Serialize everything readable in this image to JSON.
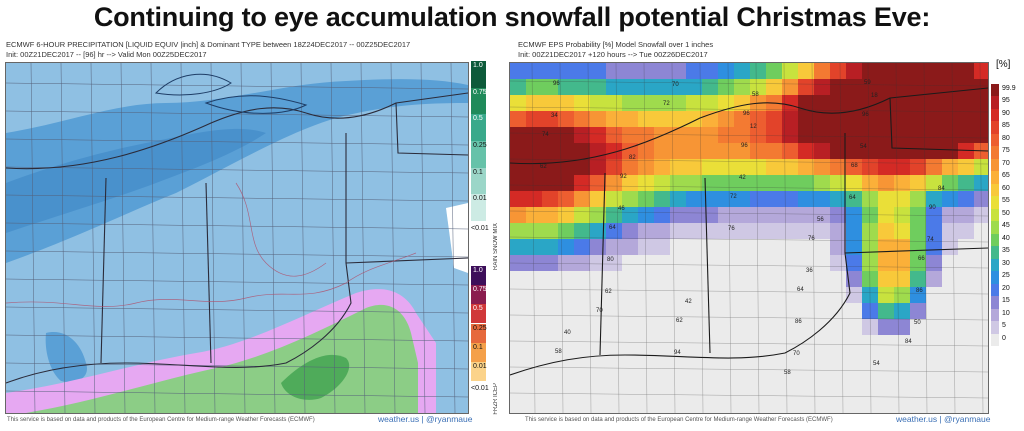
{
  "headline": "Continuing to eye accumulation snowfall potential Christmas Eve:",
  "left_panel": {
    "title_line1": "ECMWF 6-HOUR PRECIPITATION [LIQUID EQUIV |inch] & Dominant TYPE between 18Z24DEC2017 -- 00Z25DEC2017",
    "title_line2": "Init: 00Z21DEC2017 -- [96] hr --> Valid Mon 00Z25DEC2017",
    "footer": "This service is based on data and products of the European Centre for Medium-range Weather Forecasts (ECMWF)",
    "brand": "weather.us | @ryanmaue",
    "snow_legend": {
      "labels": [
        "1.0",
        "0.75",
        "0.5",
        "0.25",
        "0.1",
        "0.01"
      ],
      "below_label": "<0.01",
      "type_text": "RAIN SNOW MIX",
      "colors": [
        "#0d5a3a",
        "#1f8a5a",
        "#3aa98b",
        "#66c2a9",
        "#9bd6c8",
        "#cdebe4"
      ]
    },
    "ice_legend": {
      "labels": [
        "1.0",
        "0.75",
        "0.5",
        "0.25",
        "0.1",
        "0.01"
      ],
      "below_label": "<0.01",
      "type_text": "FRZR ICEP",
      "colors": [
        "#3d0f5a",
        "#8a1d4e",
        "#d0383a",
        "#e6693c",
        "#f4a04a",
        "#fbd38a"
      ]
    },
    "colors": {
      "snow_light": "#8fc0e3",
      "snow_medium": "#5aa0d6",
      "snow_heavy": "#3c85c5",
      "mix": "#e6a8f2",
      "rain_light": "#8ccd86",
      "rain_heavy": "#4fab5a",
      "county_lines": "#55607a"
    }
  },
  "right_panel": {
    "title_line1": "ECMWF EPS Probability [%] Model Snowfall over 1 inches",
    "title_line2": "Init: 00Z21DEC2017 +120 hours --> Tue 00Z26DEC2017",
    "footer": "This service is based on data and products of the European Centre for Medium-range Weather Forecasts (ECMWF)",
    "brand": "weather.us | @ryanmaue",
    "legend_unit": "[%]",
    "legend_labels": [
      "99.9",
      "95",
      "90",
      "85",
      "80",
      "75",
      "70",
      "65",
      "60",
      "55",
      "50",
      "45",
      "40",
      "35",
      "30",
      "25",
      "20",
      "15",
      "10",
      "5",
      "0"
    ],
    "legend_colors": [
      "#8b1a1a",
      "#b81f24",
      "#d42a25",
      "#e2432a",
      "#ed5e30",
      "#f37a32",
      "#f79535",
      "#fbb039",
      "#f8c93a",
      "#eadf38",
      "#c8e23e",
      "#9fdb4d",
      "#6fcd5e",
      "#43b98c",
      "#2aa6c6",
      "#2e8fe0",
      "#4b7ae8",
      "#8d86d4",
      "#b4a8da",
      "#cfc8e4",
      "#ebebeb"
    ],
    "point_values": [
      "96",
      "59",
      "58",
      "62",
      "64",
      "66",
      "64",
      "72",
      "68",
      "74",
      "72",
      "58",
      "84",
      "70",
      "76",
      "90",
      "92",
      "96",
      "96",
      "96",
      "94",
      "86",
      "86",
      "80",
      "76",
      "64",
      "62",
      "58",
      "54",
      "40",
      "42",
      "36",
      "74",
      "46",
      "42",
      "54",
      "34",
      "70",
      "70",
      "50",
      "62",
      "56",
      "84",
      "82",
      "12",
      "18"
    ]
  }
}
